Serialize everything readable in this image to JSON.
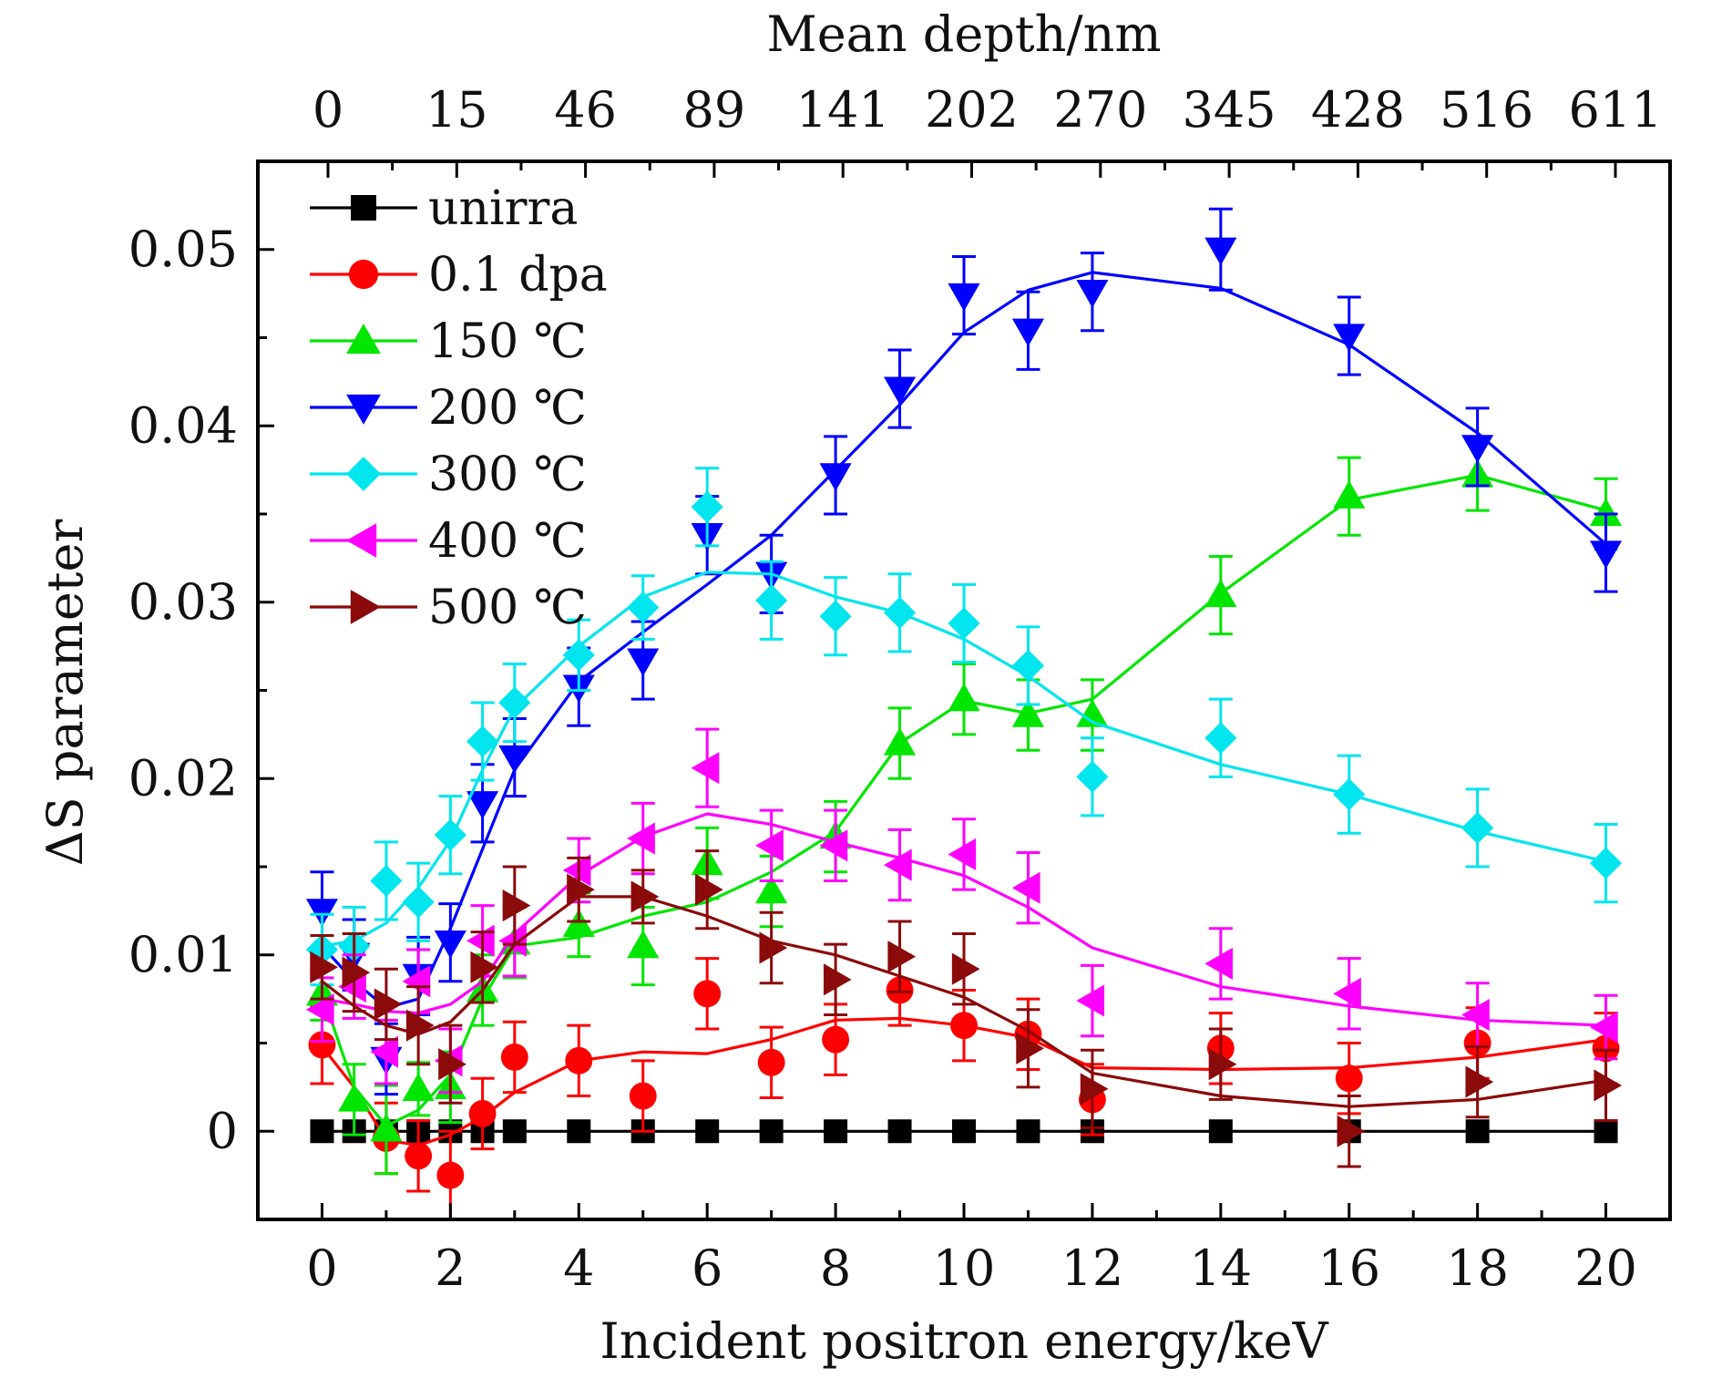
{
  "chart_data": {
    "type": "line",
    "xlabel": "Incident positron energy/keV",
    "ylabel": "ΔS parameter",
    "top_axis_label": "Mean depth/nm",
    "x_ticks": [
      "0",
      "2",
      "4",
      "6",
      "8",
      "10",
      "12",
      "14",
      "16",
      "18",
      "20"
    ],
    "y_ticks": [
      "0",
      "0.01",
      "0.02",
      "0.03",
      "0.04",
      "0.05"
    ],
    "top_ticks": [
      "0",
      "15",
      "46",
      "89",
      "141",
      "202",
      "270",
      "345",
      "428",
      "516",
      "611"
    ],
    "xlim": [
      -1,
      21
    ],
    "ylim": [
      -0.005,
      0.055
    ],
    "grid": false,
    "legend_position": "top-left",
    "x": [
      0,
      0.5,
      1,
      1.5,
      2,
      2.5,
      3,
      4,
      5,
      6,
      7,
      8,
      9,
      10,
      11,
      12,
      14,
      16,
      18,
      20
    ],
    "series": [
      {
        "name": "unirra",
        "color": "#000000",
        "marker": "square",
        "points": [
          [
            0,
            0
          ],
          [
            0.5,
            0
          ],
          [
            1,
            0
          ],
          [
            1.5,
            0
          ],
          [
            2,
            0
          ],
          [
            2.5,
            0
          ],
          [
            3,
            0
          ],
          [
            4,
            0
          ],
          [
            5,
            0
          ],
          [
            6,
            0
          ],
          [
            7,
            0
          ],
          [
            8,
            0
          ],
          [
            9,
            0
          ],
          [
            10,
            0
          ],
          [
            11,
            0
          ],
          [
            12,
            0
          ],
          [
            14,
            0
          ],
          [
            16,
            0
          ],
          [
            18,
            0
          ],
          [
            20,
            0
          ]
        ],
        "errors": [],
        "fit": [
          [
            0,
            0
          ],
          [
            20,
            0
          ]
        ]
      },
      {
        "name": "0.1 dpa",
        "color": "#ff0000",
        "marker": "circle",
        "points": [
          [
            0,
            0.0049
          ],
          [
            1,
            -0.0004
          ],
          [
            1.5,
            -0.0014
          ],
          [
            2,
            -0.0025
          ],
          [
            2.5,
            0.001
          ],
          [
            3,
            0.0042
          ],
          [
            4,
            0.004
          ],
          [
            5,
            0.002
          ],
          [
            6,
            0.0078
          ],
          [
            7,
            0.0039
          ],
          [
            8,
            0.0052
          ],
          [
            9,
            0.008
          ],
          [
            10,
            0.006
          ],
          [
            11,
            0.0055
          ],
          [
            12,
            0.0018
          ],
          [
            14,
            0.0047
          ],
          [
            16,
            0.003
          ],
          [
            18,
            0.005
          ],
          [
            20,
            0.0047
          ]
        ],
        "errors": [
          0.0022,
          0.002,
          0.002,
          0.0025,
          0.002,
          0.002,
          0.002,
          0.002,
          0.002,
          0.002,
          0.002,
          0.002,
          0.002,
          0.002,
          0.002,
          0.002,
          0.002,
          0.002,
          0.002
        ],
        "fit": [
          [
            0,
            0.0048
          ],
          [
            0.5,
            0.0025
          ],
          [
            1,
            -0.0005
          ],
          [
            1.5,
            -0.0008
          ],
          [
            2,
            -0.0002
          ],
          [
            2.5,
            0.0008
          ],
          [
            3,
            0.0022
          ],
          [
            4,
            0.004
          ],
          [
            5,
            0.0045
          ],
          [
            6,
            0.0044
          ],
          [
            7,
            0.0052
          ],
          [
            8,
            0.0063
          ],
          [
            9,
            0.0064
          ],
          [
            10,
            0.006
          ],
          [
            11,
            0.0053
          ],
          [
            12,
            0.0036
          ],
          [
            14,
            0.0035
          ],
          [
            16,
            0.0036
          ],
          [
            18,
            0.0042
          ],
          [
            20,
            0.0052
          ]
        ]
      },
      {
        "name": "150 ℃",
        "color": "#00e600",
        "marker": "triangle-up",
        "points": [
          [
            0,
            0.0078
          ],
          [
            0.5,
            0.0018
          ],
          [
            1,
            0.0001
          ],
          [
            1.5,
            0.0024
          ],
          [
            2,
            0.0025
          ],
          [
            2.5,
            0.008
          ],
          [
            3,
            0.0107
          ],
          [
            4,
            0.0117
          ],
          [
            5,
            0.0105
          ],
          [
            6,
            0.0152
          ],
          [
            7,
            0.0136
          ],
          [
            8,
            0.0167
          ],
          [
            9,
            0.022
          ],
          [
            10,
            0.0245
          ],
          [
            11,
            0.0236
          ],
          [
            12,
            0.0236
          ],
          [
            14,
            0.0304
          ],
          [
            16,
            0.036
          ],
          [
            18,
            0.0372
          ],
          [
            20,
            0.035
          ]
        ],
        "errors": [
          0.0015,
          0.002,
          0.0025,
          0.0015,
          0.002,
          0.002,
          0.002,
          0.0018,
          0.0022,
          0.002,
          0.002,
          0.002,
          0.002,
          0.002,
          0.002,
          0.002,
          0.0022,
          0.0022,
          0.002,
          0.002
        ],
        "fit": [
          [
            0,
            0.0078
          ],
          [
            0.5,
            0.0025
          ],
          [
            1,
            0.0003
          ],
          [
            1.5,
            0.0012
          ],
          [
            2,
            0.0032
          ],
          [
            2.5,
            0.0075
          ],
          [
            3,
            0.0105
          ],
          [
            4,
            0.011
          ],
          [
            5,
            0.0122
          ],
          [
            6,
            0.013
          ],
          [
            7,
            0.0147
          ],
          [
            8,
            0.017
          ],
          [
            9,
            0.022
          ],
          [
            10,
            0.0244
          ],
          [
            11,
            0.0237
          ],
          [
            12,
            0.0245
          ],
          [
            14,
            0.0305
          ],
          [
            16,
            0.0358
          ],
          [
            18,
            0.0372
          ],
          [
            20,
            0.0352
          ]
        ]
      },
      {
        "name": "200 ℃",
        "color": "#0000ff",
        "marker": "triangle-down",
        "points": [
          [
            0,
            0.0125
          ],
          [
            0.5,
            0.01
          ],
          [
            1,
            0.0041
          ],
          [
            1.5,
            0.0088
          ],
          [
            2,
            0.0107
          ],
          [
            2.5,
            0.0186
          ],
          [
            3,
            0.0212
          ],
          [
            4,
            0.0252
          ],
          [
            5,
            0.0267
          ],
          [
            6,
            0.0338
          ],
          [
            7,
            0.0316
          ],
          [
            8,
            0.0372
          ],
          [
            9,
            0.0421
          ],
          [
            10,
            0.0474
          ],
          [
            11,
            0.0454
          ],
          [
            12,
            0.0476
          ],
          [
            14,
            0.05
          ],
          [
            16,
            0.0451
          ],
          [
            18,
            0.0388
          ],
          [
            20,
            0.0328
          ]
        ],
        "errors": [
          0.0022,
          0.002,
          0.002,
          0.0022,
          0.0022,
          0.0022,
          0.0022,
          0.0022,
          0.0022,
          0.0022,
          0.0022,
          0.0022,
          0.0022,
          0.0022,
          0.0022,
          0.0022,
          0.0023,
          0.0022,
          0.0022,
          0.0022
        ],
        "fit": [
          [
            0,
            0.0105
          ],
          [
            0.5,
            0.0085
          ],
          [
            1,
            0.007
          ],
          [
            1.5,
            0.0075
          ],
          [
            2,
            0.0115
          ],
          [
            2.5,
            0.016
          ],
          [
            3,
            0.0205
          ],
          [
            4,
            0.0255
          ],
          [
            5,
            0.0283
          ],
          [
            6,
            0.031
          ],
          [
            7,
            0.0338
          ],
          [
            8,
            0.0375
          ],
          [
            9,
            0.0412
          ],
          [
            10,
            0.0453
          ],
          [
            11,
            0.0477
          ],
          [
            12,
            0.0487
          ],
          [
            14,
            0.0478
          ],
          [
            16,
            0.0446
          ],
          [
            18,
            0.0396
          ],
          [
            20,
            0.0333
          ]
        ]
      },
      {
        "name": "300 ℃",
        "color": "#00e5ee",
        "marker": "diamond",
        "points": [
          [
            0,
            0.0103
          ],
          [
            0.5,
            0.0105
          ],
          [
            1,
            0.0142
          ],
          [
            1.5,
            0.013
          ],
          [
            2,
            0.0168
          ],
          [
            2.5,
            0.0221
          ],
          [
            3,
            0.0243
          ],
          [
            4,
            0.027
          ],
          [
            5,
            0.0297
          ],
          [
            6,
            0.0354
          ],
          [
            7,
            0.0301
          ],
          [
            8,
            0.0292
          ],
          [
            9,
            0.0294
          ],
          [
            10,
            0.0288
          ],
          [
            11,
            0.0264
          ],
          [
            12,
            0.0201
          ],
          [
            14,
            0.0223
          ],
          [
            16,
            0.0191
          ],
          [
            18,
            0.0172
          ],
          [
            20,
            0.0152
          ]
        ],
        "errors": [
          0.002,
          0.0022,
          0.0022,
          0.0022,
          0.0022,
          0.0022,
          0.0022,
          0.002,
          0.0018,
          0.0022,
          0.0022,
          0.0022,
          0.0022,
          0.0022,
          0.0022,
          0.0022,
          0.0022,
          0.0022,
          0.0022,
          0.0022
        ],
        "fit": [
          [
            0,
            0.0105
          ],
          [
            0.5,
            0.0108
          ],
          [
            1,
            0.0118
          ],
          [
            1.5,
            0.0138
          ],
          [
            2,
            0.0165
          ],
          [
            2.5,
            0.0205
          ],
          [
            3,
            0.024
          ],
          [
            4,
            0.0275
          ],
          [
            5,
            0.0303
          ],
          [
            6,
            0.0317
          ],
          [
            7,
            0.0316
          ],
          [
            8,
            0.0303
          ],
          [
            9,
            0.0294
          ],
          [
            10,
            0.0279
          ],
          [
            11,
            0.0258
          ],
          [
            12,
            0.0232
          ],
          [
            14,
            0.0208
          ],
          [
            16,
            0.0191
          ],
          [
            18,
            0.017
          ],
          [
            20,
            0.0153
          ]
        ]
      },
      {
        "name": "400 ℃",
        "color": "#ff00ff",
        "marker": "triangle-left",
        "points": [
          [
            0,
            0.0069
          ],
          [
            0.5,
            0.0082
          ],
          [
            1,
            0.0045
          ],
          [
            1.5,
            0.0085
          ],
          [
            2,
            0.004
          ],
          [
            2.5,
            0.0108
          ],
          [
            3,
            0.0108
          ],
          [
            4,
            0.0148
          ],
          [
            5,
            0.0166
          ],
          [
            6,
            0.0206
          ],
          [
            7,
            0.0162
          ],
          [
            8,
            0.0162
          ],
          [
            9,
            0.0151
          ],
          [
            10,
            0.0157
          ],
          [
            11,
            0.0138
          ],
          [
            12,
            0.0074
          ],
          [
            14,
            0.0095
          ],
          [
            16,
            0.0078
          ],
          [
            18,
            0.0066
          ],
          [
            20,
            0.0059
          ]
        ],
        "errors": [
          0.0018,
          0.0018,
          0.0018,
          0.0018,
          0.0018,
          0.002,
          0.002,
          0.0018,
          0.002,
          0.0022,
          0.002,
          0.002,
          0.002,
          0.002,
          0.002,
          0.002,
          0.002,
          0.002,
          0.0018,
          0.0018
        ],
        "fit": [
          [
            0,
            0.0075
          ],
          [
            0.5,
            0.0072
          ],
          [
            1,
            0.0068
          ],
          [
            1.5,
            0.0067
          ],
          [
            2,
            0.0072
          ],
          [
            2.5,
            0.0085
          ],
          [
            3,
            0.0112
          ],
          [
            4,
            0.0145
          ],
          [
            5,
            0.0167
          ],
          [
            6,
            0.018
          ],
          [
            7,
            0.0174
          ],
          [
            8,
            0.0164
          ],
          [
            9,
            0.0155
          ],
          [
            10,
            0.0145
          ],
          [
            11,
            0.0127
          ],
          [
            12,
            0.0104
          ],
          [
            14,
            0.0082
          ],
          [
            16,
            0.0071
          ],
          [
            18,
            0.0063
          ],
          [
            20,
            0.006
          ]
        ]
      },
      {
        "name": "500 ℃",
        "color": "#8b0a0a",
        "marker": "triangle-right",
        "points": [
          [
            0,
            0.0093
          ],
          [
            0.5,
            0.009
          ],
          [
            1,
            0.0072
          ],
          [
            1.5,
            0.006
          ],
          [
            2,
            0.0038
          ],
          [
            2.5,
            0.0093
          ],
          [
            3,
            0.0128
          ],
          [
            4,
            0.0137
          ],
          [
            5,
            0.0133
          ],
          [
            6,
            0.0137
          ],
          [
            7,
            0.0104
          ],
          [
            8,
            0.0086
          ],
          [
            9,
            0.0099
          ],
          [
            10,
            0.0092
          ],
          [
            11,
            0.0047
          ],
          [
            12,
            0.0024
          ],
          [
            14,
            0.0038
          ],
          [
            16,
            0
          ],
          [
            18,
            0.0028
          ],
          [
            20,
            0.0026
          ]
        ],
        "errors": [
          0.0018,
          0.0022,
          0.002,
          0.0022,
          0.0022,
          0.002,
          0.0022,
          0.0018,
          0.0015,
          0.0022,
          0.002,
          0.002,
          0.002,
          0.002,
          0.0022,
          0.0022,
          0.002,
          0.002,
          0.002,
          0.002
        ],
        "fit": [
          [
            0,
            0.0085
          ],
          [
            0.5,
            0.0071
          ],
          [
            1,
            0.006
          ],
          [
            1.5,
            0.0055
          ],
          [
            2,
            0.0062
          ],
          [
            2.5,
            0.008
          ],
          [
            3,
            0.0106
          ],
          [
            4,
            0.0133
          ],
          [
            5,
            0.0133
          ],
          [
            6,
            0.0122
          ],
          [
            7,
            0.0108
          ],
          [
            8,
            0.01
          ],
          [
            9,
            0.0088
          ],
          [
            10,
            0.0076
          ],
          [
            11,
            0.0057
          ],
          [
            12,
            0.0033
          ],
          [
            14,
            0.002
          ],
          [
            16,
            0.0014
          ],
          [
            18,
            0.0018
          ],
          [
            20,
            0.0029
          ]
        ]
      }
    ]
  }
}
